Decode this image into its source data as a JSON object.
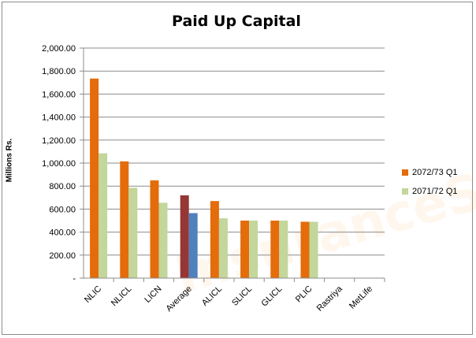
{
  "chart_data": {
    "type": "bar",
    "title": "Paid Up Capital",
    "ylabel": "Millions Rs.",
    "xlabel": "",
    "ylim": [
      0,
      2000
    ],
    "ytick_step": 200,
    "ytick_labels": [
      "-",
      "200.00",
      "400.00",
      "600.00",
      "800.00",
      "1,000.00",
      "1,200.00",
      "1,400.00",
      "1,600.00",
      "1,800.00",
      "2,000.00"
    ],
    "grid": true,
    "legend_position": "right",
    "categories": [
      "NLIC",
      "NLICL",
      "LICN",
      "Average",
      "ALICL",
      "SLICL",
      "GLICL",
      "PLIC",
      "Rastriya",
      "MetLife"
    ],
    "series": [
      {
        "name": "2072/73 Q1",
        "color": "#e46c0a",
        "values": [
          1735,
          1015,
          850,
          720,
          670,
          500,
          500,
          490,
          0,
          0
        ]
      },
      {
        "name": "2071/72 Q1",
        "color": "#c3d69b",
        "values": [
          1085,
          785,
          655,
          565,
          520,
          500,
          500,
          490,
          0,
          0
        ]
      }
    ],
    "highlight_category": "Average",
    "highlight_colors": [
      "#953735",
      "#4f81bd"
    ],
    "watermark": "InsuranceSansar.com"
  }
}
